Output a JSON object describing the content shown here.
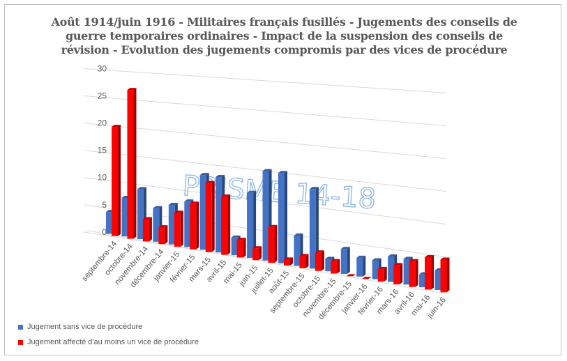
{
  "title_lines": [
    "Août 1914/juin 1916 - Militaires français fusillés - Jugements des conseils de",
    "guerre temporaires ordinaires - Impact de la suspension des conseils de",
    "révision - Evolution des jugements compromis par des vices de procédure"
  ],
  "watermark": "PRISME 14-18",
  "chart_data": {
    "type": "bar",
    "style": "3d-clustered-column",
    "title": "Août 1914/juin 1916 - Militaires français fusillés - Jugements des conseils de guerre temporaires ordinaires - Impact de la suspension des conseils de révision - Evolution des jugements compromis par des vices de procédure",
    "xlabel": "",
    "ylabel": "",
    "ylim": [
      0,
      30
    ],
    "yticks": [
      0,
      5,
      10,
      15,
      20,
      25,
      30
    ],
    "grid": true,
    "legend_position": "bottom-left",
    "categories": [
      "septembre-14",
      "octobre-14",
      "novembre-14",
      "décembre-14",
      "janvier-15",
      "février-15",
      "mars-15",
      "avril-15",
      "mai-15",
      "juin-15",
      "juillet-15",
      "août-15",
      "septembre-15",
      "octobre-15",
      "novembre-15",
      "décembre-15",
      "janvier-16",
      "février-16",
      "mars-16",
      "avril-16",
      "mai-16",
      "juin-16"
    ],
    "series": [
      {
        "name": "Jugement sans vice de procédure",
        "color": "#4472c4",
        "values": [
          4,
          7,
          9,
          6,
          7,
          8,
          13,
          13,
          3,
          11,
          15,
          15,
          5,
          13,
          2,
          4,
          3,
          3,
          4,
          4,
          2,
          3
        ]
      },
      {
        "name": "Jugement affecté d'au moins un vice de procédure",
        "color": "#ff0000",
        "values": [
          20,
          27,
          4,
          3,
          6,
          8,
          12,
          10,
          3,
          2,
          6,
          1,
          2,
          3,
          2,
          0,
          0,
          2,
          3,
          4,
          5,
          5
        ]
      }
    ]
  }
}
